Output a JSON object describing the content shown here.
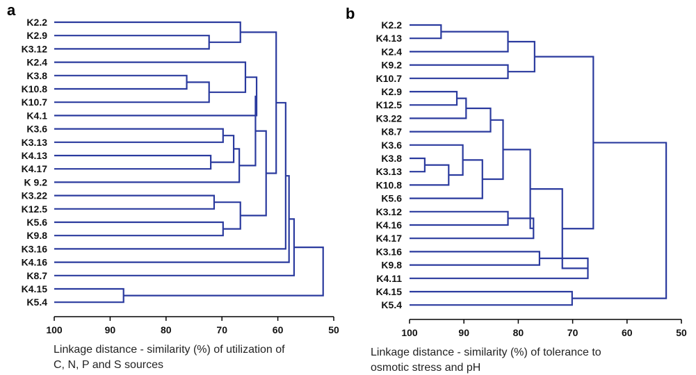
{
  "line_color": "#2a3a9e",
  "axis_color": "#000000",
  "chart_data": [
    {
      "type": "dendrogram",
      "panel_label": "a",
      "xlabel_lines": [
        "Linkage distance - similarity (%) of utilization of",
        "C, N, P and  S sources"
      ],
      "xlim": [
        100,
        50
      ],
      "xticks": [
        100,
        90,
        80,
        70,
        60,
        50
      ],
      "leaves": [
        "K2.2",
        "K2.9",
        "K3.12",
        "K2.4",
        "K3.8",
        "K10.8",
        "K10.7",
        "K4.1",
        "K3.6",
        "K3.13",
        "K4.13",
        "K4.17",
        "K 9.2",
        "K3.22",
        "K12.5",
        "K5.6",
        "K9.8",
        "K3.16",
        "K4.16",
        "K8.7",
        "K4.15",
        "K5.4"
      ],
      "merges": [
        {
          "left": "K2.9",
          "right": "K3.12",
          "height": 72.3
        },
        {
          "left": "K2.2",
          "right": 1,
          "height": 66.7
        },
        {
          "left": "K3.8",
          "right": "K10.8",
          "height": 76.3
        },
        {
          "left": 3,
          "right": "K10.7",
          "height": 72.3
        },
        {
          "left": "K2.4",
          "right": 4,
          "height": 65.8
        },
        {
          "left": 5,
          "right": "K4.1",
          "height": 63.8
        },
        {
          "left": "K3.6",
          "right": "K3.13",
          "height": 69.8
        },
        {
          "left": "K4.13",
          "right": "K4.17",
          "height": 72.0
        },
        {
          "left": 7,
          "right": 8,
          "height": 67.9
        },
        {
          "left": 9,
          "right": "K 9.2",
          "height": 66.9
        },
        {
          "left": 6,
          "right": 10,
          "height": 64.0
        },
        {
          "left": "K3.22",
          "right": "K12.5",
          "height": 71.4
        },
        {
          "left": "K5.6",
          "right": "K9.8",
          "height": 69.8
        },
        {
          "left": 12,
          "right": 13,
          "height": 66.7
        },
        {
          "left": 11,
          "right": 14,
          "height": 62.1
        },
        {
          "left": 2,
          "right": 15,
          "height": 60.3
        },
        {
          "left": 16,
          "right": "K3.16",
          "height": 58.6
        },
        {
          "left": 17,
          "right": "K4.16",
          "height": 58.0
        },
        {
          "left": 18,
          "right": "K8.7",
          "height": 57.1
        },
        {
          "left": "K4.15",
          "right": "K5.4",
          "height": 87.6
        },
        {
          "left": 19,
          "right": 20,
          "height": 51.9
        }
      ]
    },
    {
      "type": "dendrogram",
      "panel_label": "b",
      "xlabel_lines": [
        "Linkage distance - similarity (%) of tolerance to",
        "osmotic stress and pH"
      ],
      "xlim": [
        100,
        50
      ],
      "xticks": [
        100,
        90,
        80,
        70,
        60,
        50
      ],
      "leaves": [
        "K2.2",
        "K4.13",
        "K2.4",
        "K9.2",
        "K10.7",
        "K2.9",
        "K12.5",
        "K3.22",
        "K8.7",
        "K3.6",
        "K3.8",
        "K3.13",
        "K10.8",
        "K5.6",
        "K3.12",
        "K4.16",
        "K4.17",
        "K3.16",
        "K9.8",
        "K4.11",
        "K4.15",
        "K5.4"
      ],
      "merges": [
        {
          "left": "K2.2",
          "right": "K4.13",
          "height": 94.2
        },
        {
          "left": 1,
          "right": "K2.4",
          "height": 81.9
        },
        {
          "left": "K9.2",
          "right": "K10.7",
          "height": 81.9
        },
        {
          "left": 2,
          "right": 3,
          "height": 77.0
        },
        {
          "left": "K2.9",
          "right": "K12.5",
          "height": 91.3
        },
        {
          "left": 5,
          "right": "K3.22",
          "height": 89.6
        },
        {
          "left": 6,
          "right": "K8.7",
          "height": 85.1
        },
        {
          "left": "K3.8",
          "right": "K3.13",
          "height": 97.2
        },
        {
          "left": 8,
          "right": "K10.8",
          "height": 92.8
        },
        {
          "left": "K3.6",
          "right": 9,
          "height": 90.2
        },
        {
          "left": 10,
          "right": "K5.6",
          "height": 86.6
        },
        {
          "left": 7,
          "right": 11,
          "height": 82.8
        },
        {
          "left": "K3.12",
          "right": "K4.16",
          "height": 81.9
        },
        {
          "left": 13,
          "right": "K4.17",
          "height": 77.2
        },
        {
          "left": 12,
          "right": 14,
          "height": 77.8
        },
        {
          "left": "K3.16",
          "right": "K9.8",
          "height": 76.1
        },
        {
          "left": 16,
          "right": "K4.11",
          "height": 67.2
        },
        {
          "left": 15,
          "right": 17,
          "height": 71.9
        },
        {
          "left": 4,
          "right": 18,
          "height": 66.2
        },
        {
          "left": "K4.15",
          "right": "K5.4",
          "height": 70.1
        },
        {
          "left": 19,
          "right": 20,
          "height": 52.8
        }
      ]
    }
  ]
}
